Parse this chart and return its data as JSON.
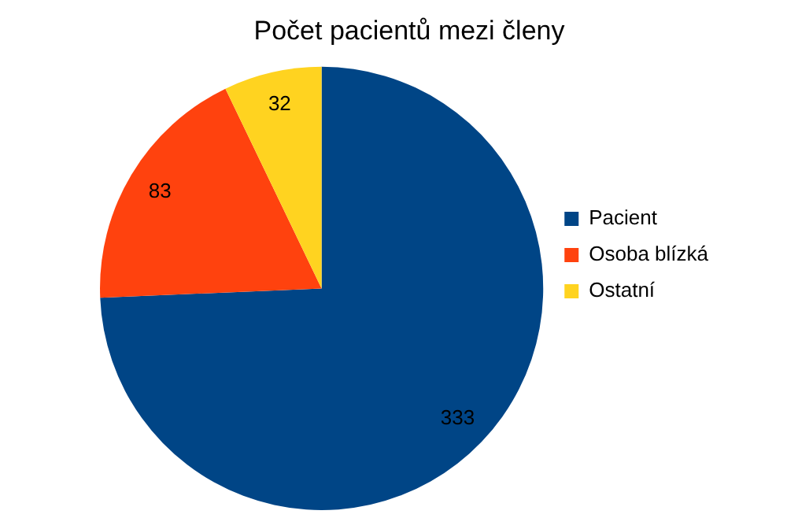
{
  "chart_data": {
    "type": "pie",
    "title": "Počet pacientů mezi členy",
    "categories": [
      "Pacient",
      "Osoba blízká",
      "Ostatní"
    ],
    "values": [
      333,
      83,
      32
    ],
    "colors": [
      "#004586",
      "#ff420e",
      "#ffd320"
    ],
    "data_labels": true,
    "legend": "right"
  }
}
